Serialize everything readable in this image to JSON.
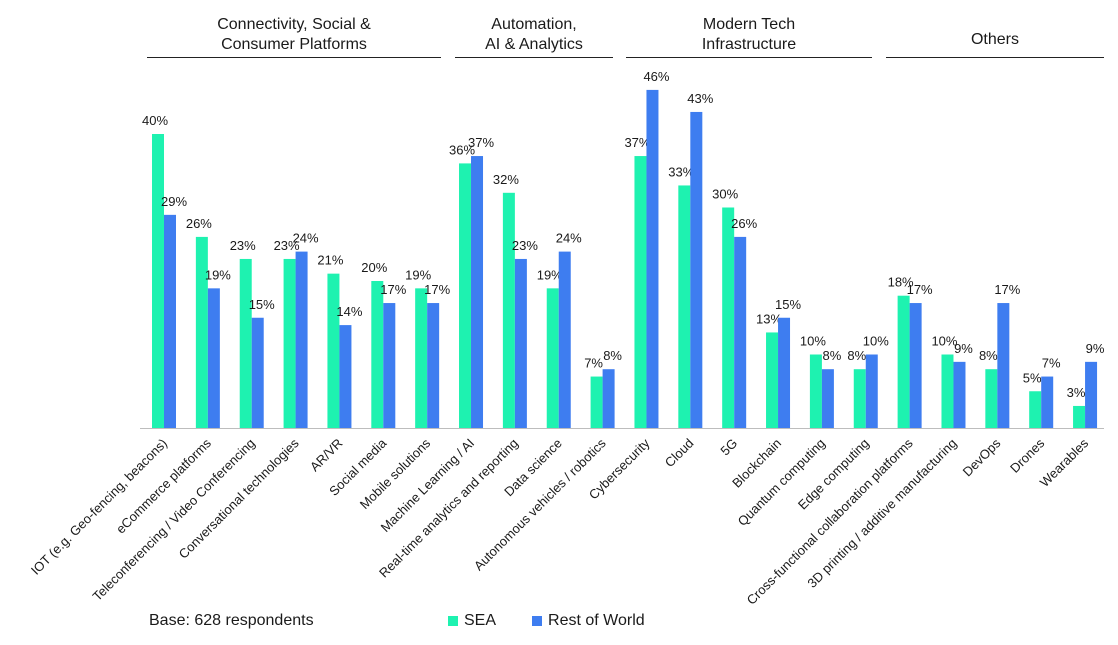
{
  "colors": {
    "sea": "#1EF2B0",
    "row": "#3E7DF0",
    "axis": "#bdbdbd",
    "text": "#1a1a1a"
  },
  "groups": [
    {
      "title_lines": [
        "Connectivity, Social &",
        "Consumer Platforms"
      ]
    },
    {
      "title_lines": [
        "Automation,",
        "AI & Analytics"
      ]
    },
    {
      "title_lines": [
        "Modern Tech",
        "Infrastructure"
      ]
    },
    {
      "title_lines": [
        "Others"
      ]
    }
  ],
  "base_note": "Base: 628 respondents",
  "legend": {
    "sea": "SEA",
    "row": "Rest of World"
  },
  "chart_data": {
    "type": "bar",
    "categories": [
      "IOT  (e.g. Geo-fencing, beacons)",
      "eCommerce platforms",
      "Teleconferencing / Video Conferencing",
      "Conversational technologies",
      "AR/VR",
      "Social media",
      "Mobile solutions",
      "Machine Learning / AI",
      "Real-time analytics and reporting",
      "Data science",
      "Autonomous vehicles / robotics",
      "Cybersecurity",
      "Cloud",
      "5G",
      "Blockchain",
      "Quantum computing",
      "Edge computing",
      "Cross-functional collaboration platforms",
      "3D printing / additive manufacturing",
      "DevOps",
      "Drones",
      "Wearables"
    ],
    "series": [
      {
        "name": "SEA",
        "values": [
          40,
          26,
          23,
          23,
          21,
          20,
          19,
          36,
          32,
          19,
          7,
          37,
          33,
          30,
          13,
          10,
          8,
          18,
          10,
          8,
          5,
          3
        ]
      },
      {
        "name": "Rest of World",
        "values": [
          29,
          19,
          15,
          24,
          14,
          17,
          17,
          37,
          23,
          24,
          8,
          46,
          43,
          26,
          15,
          8,
          10,
          17,
          9,
          17,
          7,
          9
        ]
      }
    ],
    "value_suffix": "%",
    "ylim": [
      0,
      50
    ],
    "grid": false,
    "legend_position": "bottom"
  }
}
